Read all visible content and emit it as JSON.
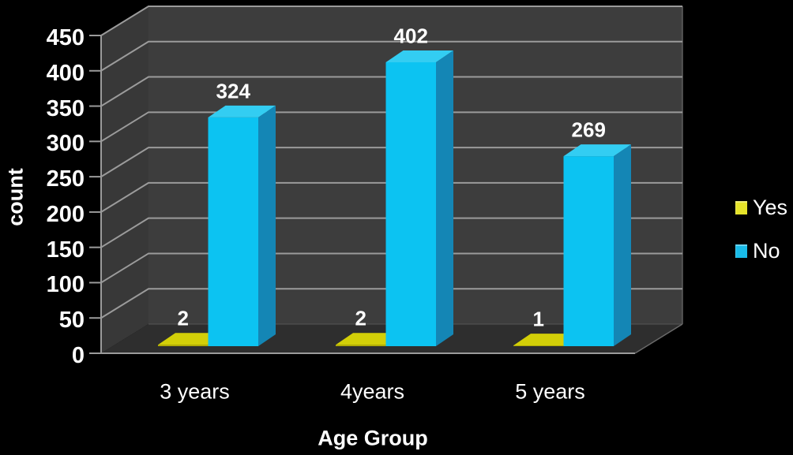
{
  "chart_data": {
    "type": "bar",
    "style": "3d-column",
    "title": "",
    "xlabel": "Age Group",
    "ylabel": "count",
    "categories": [
      "3 years",
      "4years",
      "5 years"
    ],
    "series": [
      {
        "name": "Yes",
        "values": [
          2,
          2,
          1
        ],
        "color_front": "#b5b100",
        "color_top": "#d3cf08",
        "color_side": "#6f6d00",
        "legend_color": "#e5e32a"
      },
      {
        "name": "No",
        "values": [
          324,
          402,
          269
        ],
        "color_front": "#0cc3f2",
        "color_top": "#33cdf2",
        "color_side": "#1486b5",
        "legend_color": "#19bbe8"
      }
    ],
    "ylim": [
      0,
      450
    ],
    "yticks": [
      0,
      50,
      100,
      150,
      200,
      250,
      300,
      350,
      400,
      450
    ],
    "grid": true,
    "legend_position": "right",
    "background": "#000000",
    "wall_color": "#3d3d3d",
    "left_wall_color": "#383838",
    "floor_color": "#2e2e2e",
    "gridline_color": "#9b9b9b",
    "edge_color": "#5f5f5f",
    "text_color": "#ffffff"
  }
}
